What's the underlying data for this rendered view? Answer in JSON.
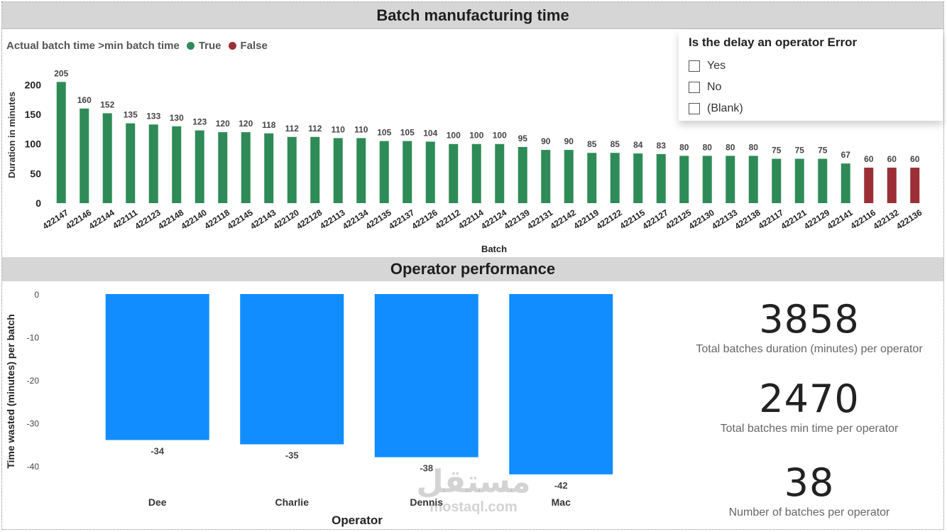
{
  "header": {
    "title": "Batch manufacturing time"
  },
  "legend": {
    "title": "Actual batch time >min batch time",
    "items": [
      {
        "label": "True",
        "color": "#2e8b57"
      },
      {
        "label": "False",
        "color": "#9b2f35"
      }
    ]
  },
  "slicer": {
    "title": "Is the delay an operator Error",
    "options": [
      "Yes",
      "No",
      "(Blank)"
    ]
  },
  "section2": {
    "title": "Operator performance"
  },
  "kpis": [
    {
      "value": "3858",
      "label": "Total batches duration (minutes) per operator"
    },
    {
      "value": "2470",
      "label": "Total batches min time per operator"
    },
    {
      "value": "38",
      "label": "Number of batches per operator"
    }
  ],
  "chart_data": [
    {
      "type": "bar",
      "xlabel": "Batch",
      "ylabel": "Duration in minutes",
      "ylim": [
        0,
        215
      ],
      "yticks": [
        0,
        50,
        100,
        150,
        200
      ],
      "categories": [
        "422147",
        "422146",
        "422144",
        "422111",
        "422123",
        "422148",
        "422140",
        "422118",
        "422145",
        "422143",
        "422120",
        "422128",
        "422113",
        "422134",
        "422135",
        "422137",
        "422126",
        "422112",
        "422114",
        "422124",
        "422139",
        "422131",
        "422142",
        "422119",
        "422122",
        "422115",
        "422127",
        "422125",
        "422130",
        "422133",
        "422138",
        "422117",
        "422121",
        "422129",
        "422141",
        "422116",
        "422132",
        "422136"
      ],
      "values": [
        205,
        160,
        152,
        135,
        133,
        130,
        123,
        120,
        120,
        118,
        112,
        112,
        110,
        110,
        105,
        105,
        104,
        100,
        100,
        100,
        95,
        90,
        90,
        85,
        85,
        84,
        83,
        80,
        80,
        80,
        80,
        75,
        75,
        75,
        67,
        60,
        60,
        60
      ],
      "flags": [
        true,
        true,
        true,
        true,
        true,
        true,
        true,
        true,
        true,
        true,
        true,
        true,
        true,
        true,
        true,
        true,
        true,
        true,
        true,
        true,
        true,
        true,
        true,
        true,
        true,
        true,
        true,
        true,
        true,
        true,
        true,
        true,
        true,
        true,
        true,
        false,
        false,
        false
      ],
      "colors": {
        "true": "#2e8b57",
        "false": "#9b2f35"
      },
      "data_labels": true,
      "grid": false
    },
    {
      "type": "bar",
      "xlabel": "Operator",
      "ylabel": "Time wasted (minutes) per batch",
      "ylim": [
        -45,
        0
      ],
      "yticks": [
        0,
        -10,
        -20,
        -30,
        -40
      ],
      "categories": [
        "Dee",
        "Charlie",
        "Dennis",
        "Mac"
      ],
      "values": [
        -34,
        -35,
        -38,
        -42
      ],
      "color": "#118dff",
      "data_labels": true,
      "grid": false
    }
  ],
  "watermark": {
    "text": "مستقل",
    "subtext": "mostaql.com"
  }
}
